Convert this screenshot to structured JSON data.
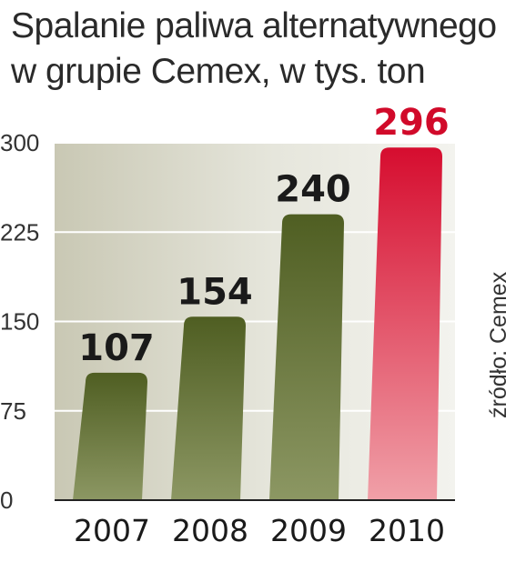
{
  "title_line1": "Spalanie paliwa alternatywnego",
  "title_line2": "w grupie Cemex, w tys. ton",
  "source": "źródło: Cemex",
  "colors": {
    "bar_normal_top": "#4f5e22",
    "bar_normal_bottom": "#8c9763",
    "bar_highlight_top": "#d60d2f",
    "bar_highlight_bottom": "#f0a0a8",
    "label_normal": "#1a1a1a",
    "label_highlight": "#d10a2a"
  },
  "chart_data": {
    "type": "bar",
    "categories": [
      "2007",
      "2008",
      "2009",
      "2010"
    ],
    "values": [
      107,
      154,
      240,
      296
    ],
    "highlight_index": 3,
    "ylim": [
      0,
      300
    ],
    "yticks": [
      "0",
      "75",
      "150",
      "225",
      "300"
    ],
    "ytick_values": [
      0,
      75,
      150,
      225,
      300
    ],
    "grid": true,
    "title": "Spalanie paliwa alternatywnego w grupie Cemex, w tys. ton"
  }
}
